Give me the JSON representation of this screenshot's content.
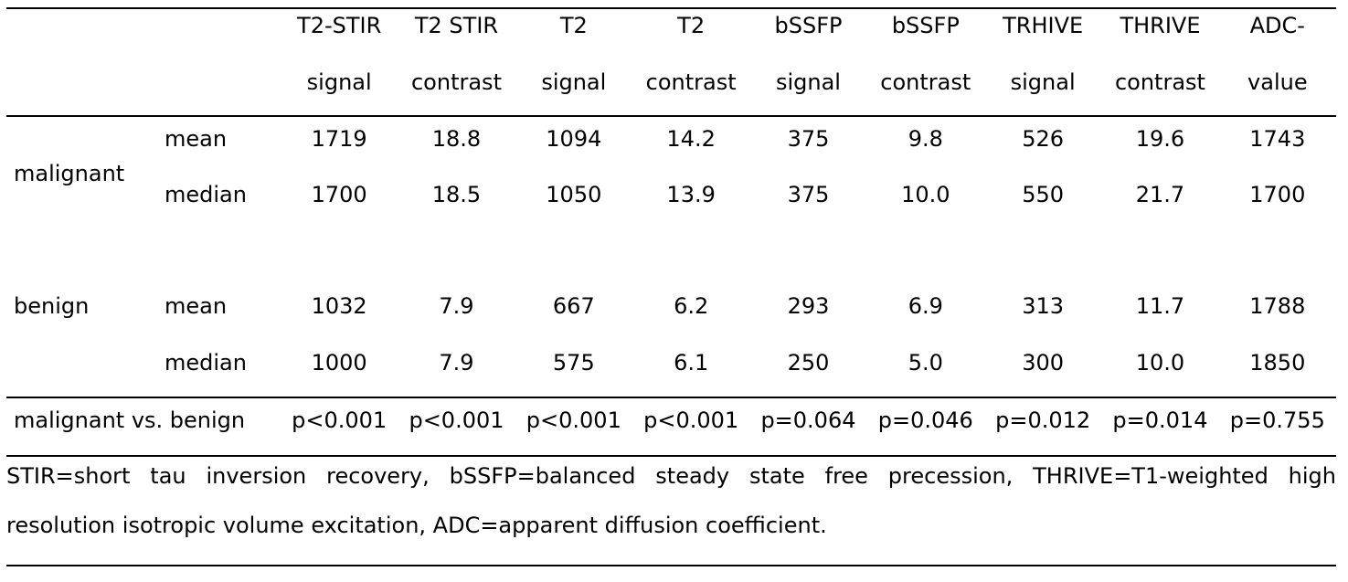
{
  "table": {
    "headers": [
      {
        "line1": "T2-STIR",
        "line2": "signal"
      },
      {
        "line1": "T2 STIR",
        "line2": "contrast"
      },
      {
        "line1": "T2",
        "line2": "signal"
      },
      {
        "line1": "T2",
        "line2": "contrast"
      },
      {
        "line1": "bSSFP",
        "line2": "signal"
      },
      {
        "line1": "bSSFP",
        "line2": "contrast"
      },
      {
        "line1": "TRHIVE",
        "line2": "signal"
      },
      {
        "line1": "THRIVE",
        "line2": "contrast"
      },
      {
        "line1": "ADC-",
        "line2": "value"
      }
    ],
    "groups": [
      {
        "label": "malignant",
        "rows": [
          {
            "stat": "mean",
            "values": [
              "1719",
              "18.8",
              "1094",
              "14.2",
              "375",
              "9.8",
              "526",
              "19.6",
              "1743"
            ]
          },
          {
            "stat": "median",
            "values": [
              "1700",
              "18.5",
              "1050",
              "13.9",
              "375",
              "10.0",
              "550",
              "21.7",
              "1700"
            ]
          }
        ]
      },
      {
        "label": "benign",
        "rows": [
          {
            "stat": "mean",
            "values": [
              "1032",
              "7.9",
              "667",
              "6.2",
              "293",
              "6.9",
              "313",
              "11.7",
              "1788"
            ]
          },
          {
            "stat": "median",
            "values": [
              "1000",
              "7.9",
              "575",
              "6.1",
              "250",
              "5.0",
              "300",
              "10.0",
              "1850"
            ]
          }
        ]
      }
    ],
    "comparison": {
      "label": "malignant vs. benign",
      "values": [
        "p<0.001",
        "p<0.001",
        "p<0.001",
        "p<0.001",
        "p=0.064",
        "p=0.046",
        "p=0.012",
        "p=0.014",
        "p=0.755"
      ]
    },
    "footnote": {
      "line1": "STIR=short tau inversion recovery, bSSFP=balanced steady state free precession, THRIVE=T1-weighted high",
      "line2": "resolution isotropic volume excitation, ADC=apparent diffusion coefficient."
    }
  },
  "colors": {
    "text": "#000000",
    "background": "#ffffff",
    "rule": "#000000"
  }
}
